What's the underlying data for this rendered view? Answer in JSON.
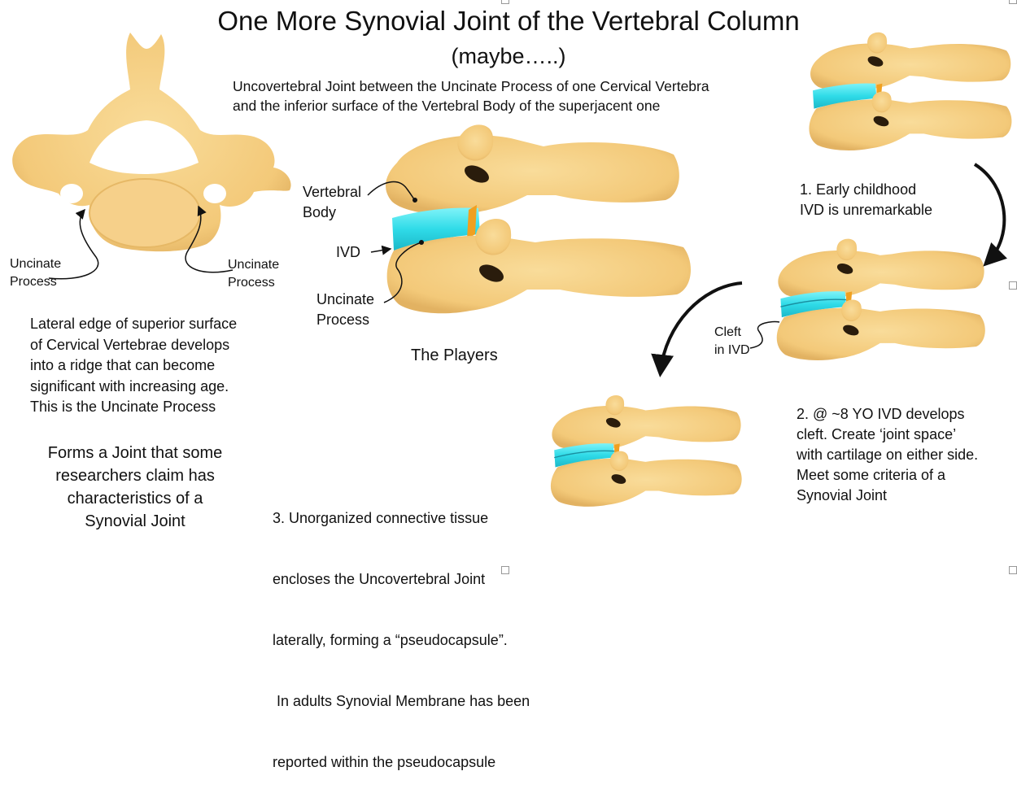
{
  "title": "One More Synovial Joint of the Vertebral Column",
  "subtitle": "(maybe…..)",
  "description": [
    "Uncovertebral Joint between the Uncinate Process of one Cervical Vertebra",
    "and the inferior surface of the  Vertebral Body of the superjacent one"
  ],
  "top_vertebra": {
    "label_left": [
      "Uncinate",
      "Process"
    ],
    "label_right": [
      "Uncinate",
      "Process"
    ]
  },
  "lateral_text": [
    "Lateral edge of superior surface",
    "of Cervical Vertebrae develops",
    "into a ridge  that can become",
    "significant with increasing age.",
    "This is the Uncinate Process"
  ],
  "forms_text": [
    "Forms a Joint that some",
    "researchers claim has",
    "characteristics of a",
    "Synovial Joint"
  ],
  "players": {
    "caption": "The Players",
    "vertebral_body": [
      "Vertebral",
      "Body"
    ],
    "ivd": "IVD",
    "uncinate": [
      "Uncinate",
      "Process"
    ]
  },
  "stages": [
    {
      "lines": [
        "1. Early childhood",
        "IVD is unremarkable"
      ]
    },
    {
      "lines": [
        "2. @ ~8 YO IVD develops",
        "cleft.  Create ‘joint space’",
        "with cartilage on either side.",
        "Meet some criteria of a",
        "Synovial Joint"
      ]
    },
    {
      "lines": [
        "3. Unorganized connective tissue",
        "encloses the Uncovertebral Joint",
        "laterally, forming a “pseudocapsule”.",
        " In adults Synovial Membrane has been",
        "reported within the pseudocapsule"
      ]
    }
  ],
  "cleft_label": [
    "Cleft",
    "in IVD"
  ],
  "colors": {
    "bone": "#f5cf82",
    "bone_dark": "#e0b25e",
    "disc": "#38e0ec",
    "cartilage": "#f0a020",
    "ink": "#111111"
  }
}
